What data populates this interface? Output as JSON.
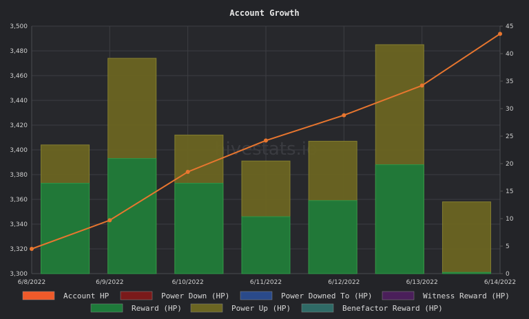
{
  "chart_data": {
    "type": "bar",
    "title": "Account Growth",
    "watermark": "hivestats.io",
    "x_labels": [
      "6/8/2022",
      "6/9/2022",
      "6/10/2022",
      "6/11/2022",
      "6/12/2022",
      "6/13/2022",
      "6/14/2022"
    ],
    "y_left": {
      "min": 3300,
      "max": 3500,
      "ticks": [
        "3,300",
        "3,320",
        "3,340",
        "3,360",
        "3,380",
        "3,400",
        "3,420",
        "3,440",
        "3,460",
        "3,480",
        "3,500"
      ]
    },
    "y_right": {
      "min": 0,
      "max": 45,
      "ticks": [
        "0",
        "5",
        "10",
        "15",
        "20",
        "25",
        "30",
        "35",
        "40",
        "45"
      ]
    },
    "bar_categories": [
      "6/8",
      "6/9",
      "6/10",
      "6/11",
      "6/12",
      "6/13",
      "6/14"
    ],
    "series": [
      {
        "name": "Reward (HP)",
        "color": "#1e7a3a",
        "axis": "left",
        "type": "bar",
        "values": [
          3373,
          3393,
          3373,
          3346,
          3359,
          3388,
          3301
        ]
      },
      {
        "name": "Power Up (HP)",
        "color": "#6b6522",
        "axis": "left",
        "type": "bar",
        "values": [
          3404,
          3474,
          3412,
          3391,
          3407,
          3485,
          3358
        ]
      },
      {
        "name": "Account HP",
        "color": "#e8762f",
        "axis": "right",
        "type": "line",
        "values": [
          4.5,
          9.7,
          18.5,
          24.2,
          28.8,
          34.2,
          43.6
        ]
      }
    ],
    "legend": [
      {
        "label": "Account HP",
        "color": "#ee5a2a"
      },
      {
        "label": "Power Down (HP)",
        "color": "#7a1a1a"
      },
      {
        "label": "Power Downed To (HP)",
        "color": "#2a4a8a"
      },
      {
        "label": "Witness Reward (HP)",
        "color": "#4a1f5a"
      },
      {
        "label": "Reward (HP)",
        "color": "#1e7a3a"
      },
      {
        "label": "Power Up (HP)",
        "color": "#6b6522"
      },
      {
        "label": "Benefactor Reward (HP)",
        "color": "#2f6a66"
      }
    ],
    "grid": true,
    "legend_position": "bottom"
  }
}
